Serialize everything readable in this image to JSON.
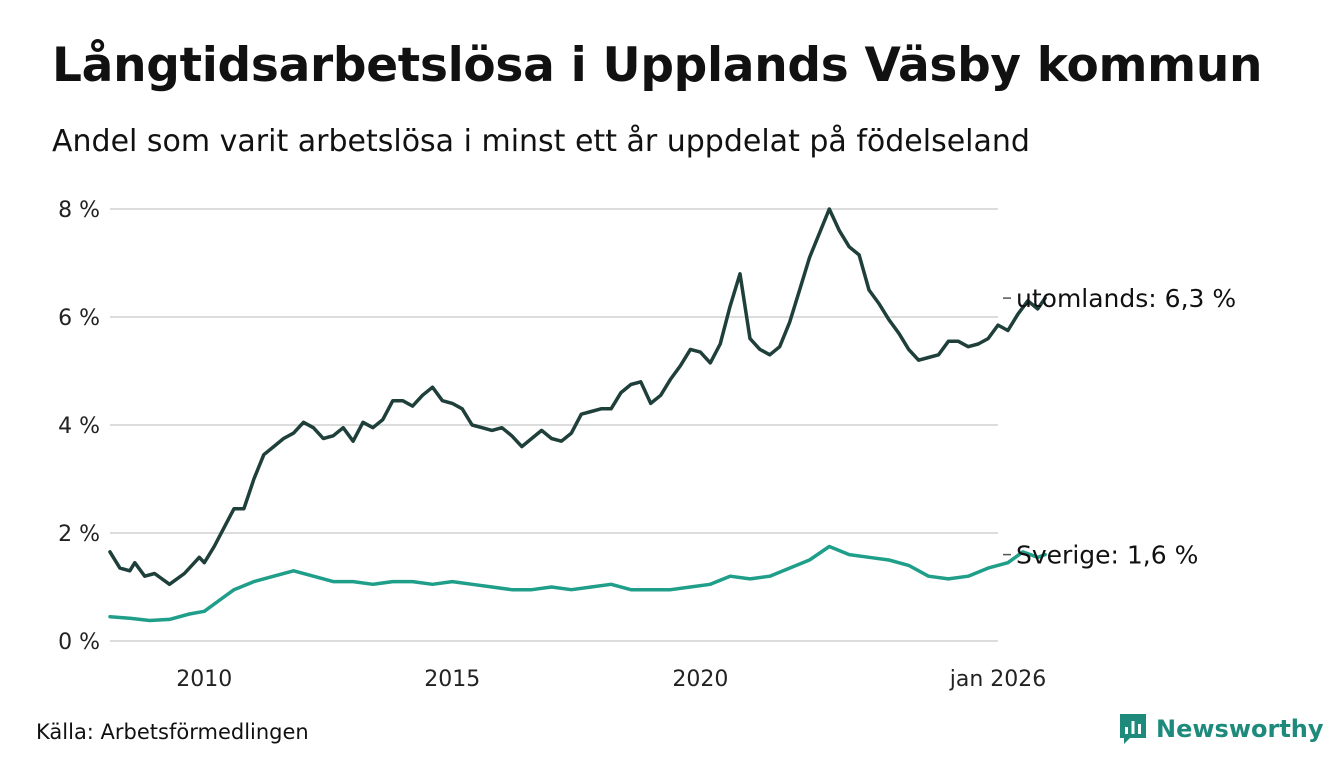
{
  "header": {
    "title": "Långtidsarbetslösa i Upplands Väsby kommun",
    "subtitle": "Andel som varit arbetslösa i minst ett år uppdelat på födelseland"
  },
  "footer": {
    "source": "Källa: Arbetsförmedlingen",
    "brand": "Newsworthy",
    "brand_icon": "newsworthy-logo-icon",
    "brand_color": "#1d8a7c"
  },
  "chart_data": {
    "type": "line",
    "title": "Långtidsarbetslösa i Upplands Väsby kommun",
    "subtitle": "Andel som varit arbetslösa i minst ett år uppdelat på födelseland",
    "xlabel": "",
    "ylabel": "",
    "xlim": [
      2008.1,
      2026.0
    ],
    "ylim": [
      0,
      8
    ],
    "yticks": [
      0,
      2,
      4,
      6,
      8
    ],
    "ytick_labels": [
      "0 %",
      "2 %",
      "4 %",
      "6 %",
      "8 %"
    ],
    "xticks": [
      2010,
      2015,
      2020,
      2026.0
    ],
    "xtick_labels": [
      "2010",
      "2015",
      "2020",
      "jan 2026"
    ],
    "grid": true,
    "series": [
      {
        "name": "utomlands",
        "label": "utomlands: 6,3 %",
        "color": "#1f3f3a",
        "points": [
          [
            2008.1,
            1.65
          ],
          [
            2008.3,
            1.35
          ],
          [
            2008.5,
            1.3
          ],
          [
            2008.6,
            1.45
          ],
          [
            2008.8,
            1.2
          ],
          [
            2009.0,
            1.25
          ],
          [
            2009.3,
            1.05
          ],
          [
            2009.6,
            1.25
          ],
          [
            2009.9,
            1.55
          ],
          [
            2010.0,
            1.45
          ],
          [
            2010.2,
            1.75
          ],
          [
            2010.4,
            2.1
          ],
          [
            2010.6,
            2.45
          ],
          [
            2010.8,
            2.45
          ],
          [
            2011.0,
            3.0
          ],
          [
            2011.2,
            3.45
          ],
          [
            2011.4,
            3.6
          ],
          [
            2011.6,
            3.75
          ],
          [
            2011.8,
            3.85
          ],
          [
            2012.0,
            4.05
          ],
          [
            2012.2,
            3.95
          ],
          [
            2012.4,
            3.75
          ],
          [
            2012.6,
            3.8
          ],
          [
            2012.8,
            3.95
          ],
          [
            2013.0,
            3.7
          ],
          [
            2013.2,
            4.05
          ],
          [
            2013.4,
            3.95
          ],
          [
            2013.6,
            4.1
          ],
          [
            2013.8,
            4.45
          ],
          [
            2014.0,
            4.45
          ],
          [
            2014.2,
            4.35
          ],
          [
            2014.4,
            4.55
          ],
          [
            2014.6,
            4.7
          ],
          [
            2014.8,
            4.45
          ],
          [
            2015.0,
            4.4
          ],
          [
            2015.2,
            4.3
          ],
          [
            2015.4,
            4.0
          ],
          [
            2015.6,
            3.95
          ],
          [
            2015.8,
            3.9
          ],
          [
            2016.0,
            3.95
          ],
          [
            2016.2,
            3.8
          ],
          [
            2016.4,
            3.6
          ],
          [
            2016.6,
            3.75
          ],
          [
            2016.8,
            3.9
          ],
          [
            2017.0,
            3.75
          ],
          [
            2017.2,
            3.7
          ],
          [
            2017.4,
            3.85
          ],
          [
            2017.6,
            4.2
          ],
          [
            2017.8,
            4.25
          ],
          [
            2018.0,
            4.3
          ],
          [
            2018.2,
            4.3
          ],
          [
            2018.4,
            4.6
          ],
          [
            2018.6,
            4.75
          ],
          [
            2018.8,
            4.8
          ],
          [
            2019.0,
            4.4
          ],
          [
            2019.2,
            4.55
          ],
          [
            2019.4,
            4.85
          ],
          [
            2019.6,
            5.1
          ],
          [
            2019.8,
            5.4
          ],
          [
            2020.0,
            5.35
          ],
          [
            2020.2,
            5.15
          ],
          [
            2020.4,
            5.5
          ],
          [
            2020.6,
            6.2
          ],
          [
            2020.8,
            6.8
          ],
          [
            2021.0,
            5.6
          ],
          [
            2021.2,
            5.4
          ],
          [
            2021.4,
            5.3
          ],
          [
            2021.6,
            5.45
          ],
          [
            2021.8,
            5.9
          ],
          [
            2022.0,
            6.5
          ],
          [
            2022.2,
            7.1
          ],
          [
            2022.4,
            7.55
          ],
          [
            2022.6,
            8.0
          ],
          [
            2022.8,
            7.6
          ],
          [
            2023.0,
            7.3
          ],
          [
            2023.2,
            7.15
          ],
          [
            2023.4,
            6.5
          ],
          [
            2023.6,
            6.25
          ],
          [
            2023.8,
            5.95
          ],
          [
            2024.0,
            5.7
          ],
          [
            2024.2,
            5.4
          ],
          [
            2024.4,
            5.2
          ],
          [
            2024.6,
            5.25
          ],
          [
            2024.8,
            5.3
          ],
          [
            2025.0,
            5.55
          ],
          [
            2025.2,
            5.55
          ],
          [
            2025.4,
            5.45
          ],
          [
            2025.6,
            5.5
          ],
          [
            2025.8,
            5.6
          ],
          [
            2026.0,
            5.85
          ],
          [
            2026.2,
            5.75
          ],
          [
            2026.4,
            6.05
          ],
          [
            2026.6,
            6.3
          ],
          [
            2026.8,
            6.15
          ],
          [
            2026.95,
            6.35
          ]
        ]
      },
      {
        "name": "Sverige",
        "label": "Sverige: 1,6 %",
        "color": "#1f9e89",
        "points": [
          [
            2008.1,
            0.45
          ],
          [
            2008.5,
            0.42
          ],
          [
            2008.9,
            0.38
          ],
          [
            2009.3,
            0.4
          ],
          [
            2009.7,
            0.5
          ],
          [
            2010.0,
            0.55
          ],
          [
            2010.3,
            0.75
          ],
          [
            2010.6,
            0.95
          ],
          [
            2011.0,
            1.1
          ],
          [
            2011.4,
            1.2
          ],
          [
            2011.8,
            1.3
          ],
          [
            2012.2,
            1.2
          ],
          [
            2012.6,
            1.1
          ],
          [
            2013.0,
            1.1
          ],
          [
            2013.4,
            1.05
          ],
          [
            2013.8,
            1.1
          ],
          [
            2014.2,
            1.1
          ],
          [
            2014.6,
            1.05
          ],
          [
            2015.0,
            1.1
          ],
          [
            2015.4,
            1.05
          ],
          [
            2015.8,
            1.0
          ],
          [
            2016.2,
            0.95
          ],
          [
            2016.6,
            0.95
          ],
          [
            2017.0,
            1.0
          ],
          [
            2017.4,
            0.95
          ],
          [
            2017.8,
            1.0
          ],
          [
            2018.2,
            1.05
          ],
          [
            2018.6,
            0.95
          ],
          [
            2019.0,
            0.95
          ],
          [
            2019.4,
            0.95
          ],
          [
            2019.8,
            1.0
          ],
          [
            2020.2,
            1.05
          ],
          [
            2020.6,
            1.2
          ],
          [
            2021.0,
            1.15
          ],
          [
            2021.4,
            1.2
          ],
          [
            2021.8,
            1.35
          ],
          [
            2022.2,
            1.5
          ],
          [
            2022.6,
            1.75
          ],
          [
            2023.0,
            1.6
          ],
          [
            2023.4,
            1.55
          ],
          [
            2023.8,
            1.5
          ],
          [
            2024.2,
            1.4
          ],
          [
            2024.6,
            1.2
          ],
          [
            2025.0,
            1.15
          ],
          [
            2025.4,
            1.2
          ],
          [
            2025.8,
            1.35
          ],
          [
            2026.2,
            1.45
          ],
          [
            2026.5,
            1.65
          ],
          [
            2026.8,
            1.55
          ],
          [
            2026.95,
            1.6
          ]
        ]
      }
    ]
  }
}
